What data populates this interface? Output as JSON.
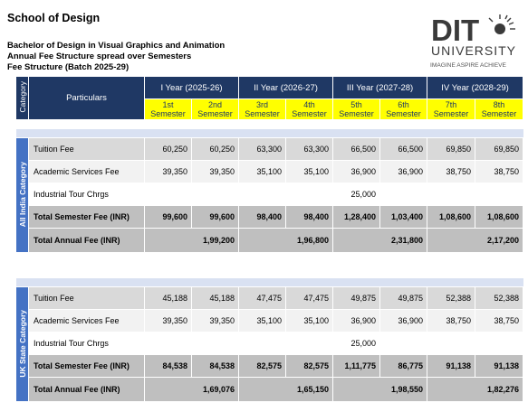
{
  "school": "School of Design",
  "program": "Bachelor of Design in Visual Graphics  and Animation",
  "subtitle": "Annual Fee Structure spread over Semesters",
  "batch": "Fee Structure (Batch 2025-29)",
  "logo": {
    "name": "DIT",
    "sub": "UNIVERSITY",
    "tagline": "IMAGINE  ASPIRE  ACHIEVE"
  },
  "header": {
    "category": "Category",
    "particulars": "Particulars",
    "years": [
      "I Year (2025-26)",
      "II Year (2026-27)",
      "III Year (2027-28)",
      "IV Year (2028-29)"
    ],
    "semesters": [
      [
        "1st",
        "Semester"
      ],
      [
        "2nd",
        "Semester"
      ],
      [
        "3rd",
        "Semester"
      ],
      [
        "4th",
        "Semester"
      ],
      [
        "5th",
        "Semester"
      ],
      [
        "6th",
        "Semester"
      ],
      [
        "7th",
        "Semester"
      ],
      [
        "8th",
        "Semester"
      ]
    ]
  },
  "sections": [
    {
      "category": "All India Category",
      "rows": [
        {
          "label": "Tuition Fee",
          "values": [
            "60,250",
            "60,250",
            "63,300",
            "63,300",
            "66,500",
            "66,500",
            "69,850",
            "69,850"
          ]
        },
        {
          "label": "Academic Services Fee",
          "values": [
            "39,350",
            "39,350",
            "35,100",
            "35,100",
            "36,900",
            "36,900",
            "38,750",
            "38,750"
          ]
        },
        {
          "label": "Industrial Tour Chrgs",
          "values": [
            "",
            "",
            "",
            "",
            "25,000",
            "",
            "",
            ""
          ]
        },
        {
          "label": "Total Semester Fee (INR)",
          "values": [
            "99,600",
            "99,600",
            "98,400",
            "98,400",
            "1,28,400",
            "1,03,400",
            "1,08,600",
            "1,08,600"
          ]
        }
      ],
      "annual": {
        "label": "Total Annual Fee (INR)",
        "values": [
          "1,99,200",
          "1,96,800",
          "2,31,800",
          "2,17,200"
        ]
      }
    },
    {
      "category": "UK State Category",
      "rows": [
        {
          "label": "Tuition Fee",
          "values": [
            "45,188",
            "45,188",
            "47,475",
            "47,475",
            "49,875",
            "49,875",
            "52,388",
            "52,388"
          ]
        },
        {
          "label": "Academic Services Fee",
          "values": [
            "39,350",
            "39,350",
            "35,100",
            "35,100",
            "36,900",
            "36,900",
            "38,750",
            "38,750"
          ]
        },
        {
          "label": "Industrial Tour Chrgs",
          "values": [
            "",
            "",
            "",
            "",
            "25,000",
            "",
            "",
            ""
          ]
        },
        {
          "label": "Total Semester Fee (INR)",
          "values": [
            "84,538",
            "84,538",
            "82,575",
            "82,575",
            "1,11,775",
            "86,775",
            "91,138",
            "91,138"
          ]
        }
      ],
      "annual": {
        "label": "Total Annual Fee (INR)",
        "values": [
          "1,69,076",
          "1,65,150",
          "1,98,550",
          "1,82,276"
        ]
      }
    }
  ],
  "colors": {
    "header_navy": "#1f3864",
    "category_blue": "#4472c4",
    "semester_yellow": "#ffff00",
    "band": "#d9e1f2"
  }
}
